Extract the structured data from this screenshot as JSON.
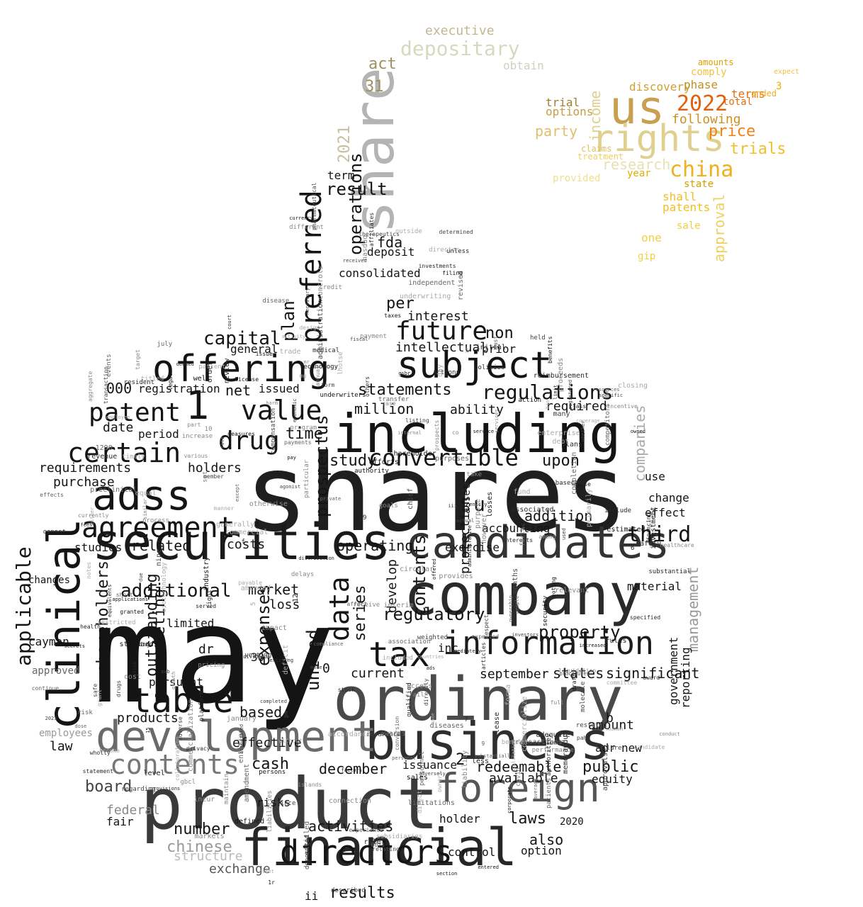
{
  "words": [
    {
      "text": "may",
      "color": "#141414"
    },
    {
      "text": "shares",
      "color": "#1f1f1f"
    },
    {
      "text": "company",
      "color": "#2a2a2a"
    },
    {
      "text": "including",
      "color": "#141414"
    },
    {
      "text": "product",
      "color": "#3a3a3a"
    },
    {
      "text": "ordinary",
      "color": "#4a4a4a"
    },
    {
      "text": "securities",
      "color": "#1a1a1a"
    },
    {
      "text": "financial",
      "color": "#262626"
    },
    {
      "text": "business",
      "color": "#2e2e2e"
    },
    {
      "text": "development",
      "color": "#6a6a6a"
    },
    {
      "text": "candidates",
      "color": "#333333"
    },
    {
      "text": "share",
      "color": "#b4b4b4"
    },
    {
      "text": "clinical",
      "color": "#141414"
    },
    {
      "text": "adss",
      "color": "#141414"
    },
    {
      "text": "subject",
      "color": "#141414"
    },
    {
      "text": "offering",
      "color": "#141414"
    },
    {
      "text": "foreign",
      "color": "#555555"
    },
    {
      "text": "information",
      "color": "#1c1c1c"
    },
    {
      "text": "table",
      "color": "#141414"
    },
    {
      "text": "us",
      "color": "#c8a050"
    },
    {
      "text": "rights",
      "color": "#e0d090"
    },
    {
      "text": "china",
      "color": "#f0b020"
    },
    {
      "text": "2022",
      "color": "#e06010"
    },
    {
      "text": "tax",
      "color": "#141414"
    },
    {
      "text": "directors",
      "color": "#141414"
    },
    {
      "text": "agreement",
      "color": "#141414"
    },
    {
      "text": "convertible",
      "color": "#141414"
    },
    {
      "text": "value",
      "color": "#141414"
    },
    {
      "text": "1",
      "color": "#141414"
    },
    {
      "text": "patent",
      "color": "#141414"
    },
    {
      "text": "certain",
      "color": "#141414"
    },
    {
      "text": "drug",
      "color": "#141414"
    },
    {
      "text": "future",
      "color": "#141414"
    },
    {
      "text": "preferred",
      "color": "#141414"
    },
    {
      "text": "contents",
      "color": "#777777"
    },
    {
      "text": "applicable",
      "color": "#141414"
    },
    {
      "text": "data",
      "color": "#141414"
    },
    {
      "text": "depositary",
      "color": "#d8d8c0"
    },
    {
      "text": "regulations",
      "color": "#141414"
    },
    {
      "text": "statements",
      "color": "#141414"
    },
    {
      "text": "price",
      "color": "#f08010"
    },
    {
      "text": "trials",
      "color": "#f0c030"
    },
    {
      "text": "research",
      "color": "#e8e0b0"
    },
    {
      "text": "party",
      "color": "#e0c070"
    },
    {
      "text": "approval",
      "color": "#f0d060"
    },
    {
      "text": "income",
      "color": "#e0d090"
    },
    {
      "text": "2021",
      "color": "#c8c0a0"
    },
    {
      "text": "act",
      "color": "#a09060"
    },
    {
      "text": "31",
      "color": "#a09060"
    },
    {
      "text": "executive",
      "color": "#c0b890"
    },
    {
      "text": "obtain",
      "color": "#d0d0c0"
    },
    {
      "text": "trial",
      "color": "#a08030"
    },
    {
      "text": "options",
      "color": "#c0a040"
    },
    {
      "text": "discovery",
      "color": "#d0a030"
    },
    {
      "text": "phase",
      "color": "#c09020"
    },
    {
      "text": "terms",
      "color": "#e07010"
    },
    {
      "text": "following",
      "color": "#d09020"
    },
    {
      "text": "shall",
      "color": "#f0c020"
    },
    {
      "text": "patents",
      "color": "#f0c020"
    },
    {
      "text": "sale",
      "color": "#f0d040"
    },
    {
      "text": "one",
      "color": "#f0d040"
    },
    {
      "text": "state",
      "color": "#d0a000"
    },
    {
      "text": "year",
      "color": "#e0b000"
    },
    {
      "text": "comply",
      "color": "#f0c040"
    },
    {
      "text": "amounts",
      "color": "#e0a000"
    },
    {
      "text": "total",
      "color": "#e07010"
    },
    {
      "text": "3",
      "color": "#f0b000"
    },
    {
      "text": "expect",
      "color": "#f0c040"
    },
    {
      "text": "ended",
      "color": "#f0b020"
    },
    {
      "text": "claims",
      "color": "#e0c060"
    },
    {
      "text": "treatment",
      "color": "#f0d060"
    },
    {
      "text": "provided",
      "color": "#f0e090"
    },
    {
      "text": "gip",
      "color": "#f0d040"
    },
    {
      "text": "operations",
      "color": "#141414"
    },
    {
      "text": "result",
      "color": "#141414"
    },
    {
      "text": "term",
      "color": "#141414"
    },
    {
      "text": "fda",
      "color": "#141414"
    },
    {
      "text": "deposit",
      "color": "#141414"
    },
    {
      "text": "per",
      "color": "#141414"
    },
    {
      "text": "consolidated",
      "color": "#141414"
    },
    {
      "text": "interest",
      "color": "#141414"
    },
    {
      "text": "intellectual",
      "color": "#141414"
    },
    {
      "text": "non",
      "color": "#141414"
    },
    {
      "text": "prior",
      "color": "#141414"
    },
    {
      "text": "capital",
      "color": "#141414"
    },
    {
      "text": "plan",
      "color": "#141414"
    },
    {
      "text": "general",
      "color": "#141414"
    },
    {
      "text": "net",
      "color": "#141414"
    },
    {
      "text": "issued",
      "color": "#141414"
    },
    {
      "text": "registration",
      "color": "#141414"
    },
    {
      "text": "000",
      "color": "#141414"
    },
    {
      "text": "million",
      "color": "#141414"
    },
    {
      "text": "ability",
      "color": "#141414"
    },
    {
      "text": "required",
      "color": "#141414"
    },
    {
      "text": "upon",
      "color": "#141414"
    },
    {
      "text": "date",
      "color": "#141414"
    },
    {
      "text": "period",
      "color": "#141414"
    },
    {
      "text": "time",
      "color": "#141414"
    },
    {
      "text": "holders",
      "color": "#141414"
    },
    {
      "text": "requirements",
      "color": "#141414"
    },
    {
      "text": "purchase",
      "color": "#141414"
    },
    {
      "text": "study",
      "color": "#141414"
    },
    {
      "text": "prospectus",
      "color": "#141414"
    },
    {
      "text": "u",
      "color": "#141414"
    },
    {
      "text": "related",
      "color": "#141414"
    },
    {
      "text": "costs",
      "color": "#141414"
    },
    {
      "text": "additional",
      "color": "#141414"
    },
    {
      "text": "market",
      "color": "#141414"
    },
    {
      "text": "third",
      "color": "#141414"
    },
    {
      "text": "addition",
      "color": "#141414"
    },
    {
      "text": "operating",
      "color": "#141414"
    },
    {
      "text": "shareholders",
      "color": "#141414"
    },
    {
      "text": "studies",
      "color": "#141414"
    },
    {
      "text": "changes",
      "color": "#141414"
    },
    {
      "text": "outstanding",
      "color": "#141414"
    },
    {
      "text": "marketing",
      "color": "#141414"
    },
    {
      "text": "limited",
      "color": "#141414"
    },
    {
      "text": "loss",
      "color": "#141414"
    },
    {
      "text": "regulatory",
      "color": "#141414"
    },
    {
      "text": "property",
      "color": "#141414"
    },
    {
      "text": "series",
      "color": "#141414"
    },
    {
      "text": "develop",
      "color": "#141414"
    },
    {
      "text": "expenses",
      "color": "#141414"
    },
    {
      "text": "united",
      "color": "#141414"
    },
    {
      "text": "0",
      "color": "#141414"
    },
    {
      "text": "current",
      "color": "#141414"
    },
    {
      "text": "september",
      "color": "#141414"
    },
    {
      "text": "states",
      "color": "#141414"
    },
    {
      "text": "significant",
      "color": "#141414"
    },
    {
      "text": "based",
      "color": "#141414"
    },
    {
      "text": "law",
      "color": "#141414"
    },
    {
      "text": "products",
      "color": "#141414"
    },
    {
      "text": "cayman",
      "color": "#141414"
    },
    {
      "text": "dr",
      "color": "#141414"
    },
    {
      "text": "30",
      "color": "#141414"
    },
    {
      "text": "cash",
      "color": "#141414"
    },
    {
      "text": "effective",
      "color": "#141414"
    },
    {
      "text": "december",
      "color": "#141414"
    },
    {
      "text": "issuance",
      "color": "#141414"
    },
    {
      "text": "redeemable",
      "color": "#141414"
    },
    {
      "text": "public",
      "color": "#141414"
    },
    {
      "text": "2",
      "color": "#141414"
    },
    {
      "text": "available",
      "color": "#141414"
    },
    {
      "text": "equity",
      "color": "#141414"
    },
    {
      "text": "new",
      "color": "#141414"
    },
    {
      "text": "adr",
      "color": "#141414"
    },
    {
      "text": "amount",
      "color": "#141414"
    },
    {
      "text": "b",
      "color": "#141414"
    },
    {
      "text": "board",
      "color": "#444444"
    },
    {
      "text": "federal",
      "color": "#888888"
    },
    {
      "text": "fair",
      "color": "#141414"
    },
    {
      "text": "chinese",
      "color": "#999999"
    },
    {
      "text": "structure",
      "color": "#bbbbbb"
    },
    {
      "text": "exchange",
      "color": "#555555"
    },
    {
      "text": "number",
      "color": "#141414"
    },
    {
      "text": "activities",
      "color": "#141414"
    },
    {
      "text": "results",
      "color": "#141414"
    },
    {
      "text": "ii",
      "color": "#141414"
    },
    {
      "text": "holder",
      "color": "#141414"
    },
    {
      "text": "laws",
      "color": "#141414"
    },
    {
      "text": "also",
      "color": "#141414"
    },
    {
      "text": "option",
      "color": "#141414"
    },
    {
      "text": "control",
      "color": "#141414"
    },
    {
      "text": "2020",
      "color": "#141414"
    },
    {
      "text": "companies",
      "color": "#aaaaaa"
    },
    {
      "text": "management",
      "color": "#999999"
    },
    {
      "text": "use",
      "color": "#141414"
    },
    {
      "text": "change",
      "color": "#141414"
    },
    {
      "text": "effect",
      "color": "#141414"
    },
    {
      "text": "material",
      "color": "#141414"
    },
    {
      "text": "government",
      "color": "#141414"
    },
    {
      "text": "reporting",
      "color": "#141414"
    },
    {
      "text": "employees",
      "color": "#999999"
    },
    {
      "text": "approved",
      "color": "#666666"
    },
    {
      "text": "contents",
      "color": "#141414"
    },
    {
      "text": "inc",
      "color": "#141414"
    },
    {
      "text": "exercise",
      "color": "#141414"
    },
    {
      "text": "protection",
      "color": "#141414"
    },
    {
      "text": "accounting",
      "color": "#141414"
    },
    {
      "text": "assets",
      "color": "#141414"
    },
    {
      "text": "pursuant",
      "color": "#141414"
    },
    {
      "text": "risks",
      "color": "#141414"
    },
    {
      "text": "4",
      "color": "#444444"
    }
  ],
  "small_words": [
    "circular",
    "administrative",
    "articles",
    "approvals",
    "dividends",
    "action",
    "included",
    "collaboration",
    "registered",
    "increase",
    "security",
    "benefits",
    "timely",
    "compensation",
    "associated",
    "insurance",
    "payable",
    "independent",
    "liquidation",
    "whether",
    "competitors",
    "notes",
    "weighted",
    "deemed",
    "actions",
    "resources",
    "day",
    "similar",
    "initial",
    "goals",
    "program",
    "interim",
    "agonist",
    "personnel",
    "voting",
    "notice",
    "regarding",
    "take",
    "currency",
    "payment",
    "aggregate",
    "owners",
    "substantial",
    "entered",
    "rate",
    "served",
    "credit",
    "molecule",
    "rules",
    "entitled",
    "section",
    "pricing",
    "july",
    "forma",
    "cause",
    "relating",
    "economic",
    "lease",
    "order",
    "since",
    "revised",
    "level",
    "vesting",
    "controls",
    "internal",
    "diseases",
    "investment",
    "measures",
    "connection",
    "candidate",
    "private",
    "deficit",
    "12",
    "procedures",
    "award",
    "restricted",
    "enterprise",
    "distribution",
    "manner",
    "expected",
    "issue",
    "necessary",
    "provisions",
    "islands",
    "markets",
    "provides",
    "limit",
    "due",
    "liability",
    "human",
    "shareholder",
    "transactions",
    "fail",
    "commercialize",
    "purposes",
    "revenue",
    "completion",
    "annual",
    "mr",
    "direct",
    "cost",
    "receive",
    "directly",
    "interests",
    "fees",
    "estimated",
    "case",
    "experience",
    "qualified",
    "purpose",
    "disease",
    "underwriters",
    "reimbursement",
    "incentive",
    "secrets",
    "described",
    "among",
    "health",
    "amended",
    "drugs",
    "however",
    "chief",
    "trade",
    "safety",
    "forth",
    "corporate",
    "delays",
    "authority",
    "without",
    "services",
    "pay",
    "failure",
    "application",
    "less",
    "fund",
    "affect",
    "bio",
    "titled",
    "fiscal",
    "iii",
    "2023",
    "months",
    "accordance",
    "become",
    "harm",
    "design",
    "patients",
    "relevant",
    "conduct",
    "1290",
    "mg",
    "15",
    "legal",
    "industry",
    "others",
    "financing",
    "either",
    "investments",
    "immediately",
    "taxes",
    "average",
    "factors",
    "court",
    "wholly",
    "event",
    "two",
    "pah",
    "nasdaq",
    "applications",
    "conversion",
    "listing",
    "patient",
    "right",
    "must",
    "impact",
    "filing",
    "risk",
    "respect",
    "affiliates",
    "underwriting",
    "healthcare",
    "adversely",
    "dose",
    "efforts",
    "form",
    "particular",
    "specified",
    "standards",
    "ads",
    "performance",
    "entity",
    "entities",
    "existing",
    "cannot",
    "events",
    "include",
    "10",
    "svb",
    "owner",
    "equal",
    "increased",
    "granted",
    "review",
    "stock",
    "commercialization",
    "medical",
    "limitations",
    "statement",
    "effects",
    "losses",
    "adequate",
    "transaction",
    "generally",
    "people",
    "made",
    "owned",
    "access",
    "preclinical",
    "except",
    "countries",
    "memorandum",
    "transfer",
    "primarily",
    "safe",
    "license",
    "make",
    "policies",
    "target",
    "full",
    "held",
    "service",
    "actual",
    "amendment",
    "benefit",
    "covid",
    "nine",
    "received",
    "awards",
    "determined",
    "therapeutics",
    "director",
    "plans",
    "completed",
    "6",
    "9",
    "biotechnology",
    "different",
    "defined",
    "corporation",
    "7",
    "set",
    "commercial",
    "class",
    "gbcl",
    "persons",
    "well",
    "payments",
    "privacy",
    "5",
    "1r",
    "january",
    "prospects",
    "continue",
    "0073",
    "19",
    "many",
    "activity",
    "growth",
    "otherwise",
    "basecamp",
    "proceeds",
    "employee",
    "short",
    "sales",
    "offered",
    "used",
    "outside",
    "co",
    "iv",
    "f",
    "associated",
    "authorities",
    "subsidiaries",
    "liabilities",
    "administration",
    "compliance",
    "maintain",
    "platform",
    "technology",
    "association",
    "currently",
    "ph",
    "coverage",
    "member",
    "equivalents",
    "incur",
    "restated",
    "officers",
    "vesting",
    "adverse",
    "investors",
    "personal",
    "resident",
    "unless",
    "grant",
    "debt",
    "draft",
    "deposited",
    "rule",
    "various",
    "gsbr",
    "committee",
    "closing",
    "process",
    "part",
    "specific",
    "substantially",
    "pharmaceutical",
    "lhotse",
    "ownership"
  ]
}
